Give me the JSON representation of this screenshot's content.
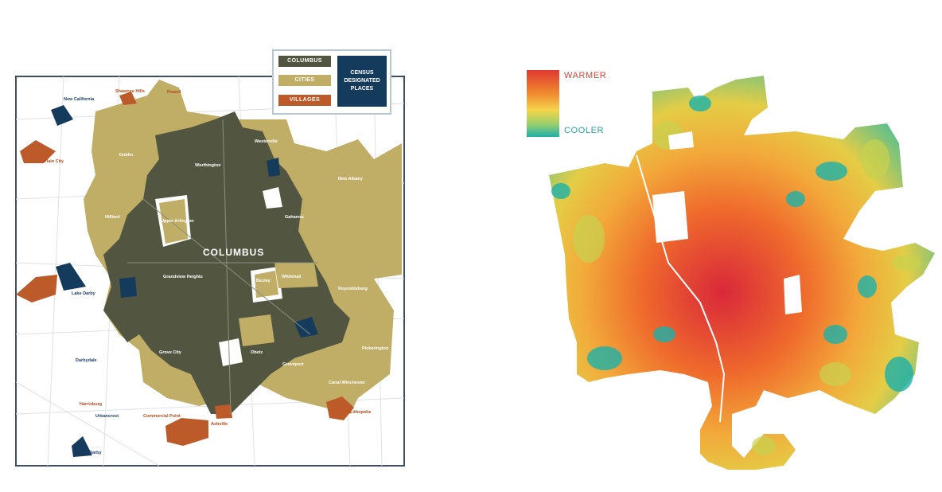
{
  "left_map": {
    "legend": {
      "columbus": "COLUMBUS",
      "cities": "CITIES",
      "villages": "VILLAGES",
      "cdp": "CENSUS DESIGNATED PLACES"
    },
    "city_label": "COLUMBUS",
    "places_white": [
      "Worthington",
      "Dublin",
      "Hilliard",
      "Upper Arlington",
      "Westerville",
      "Gahanna",
      "Bexley",
      "Whitehall",
      "Reynoldsburg",
      "Grove City",
      "Obetz",
      "Groveport",
      "Canal Winchester",
      "New Albany",
      "Pickerington",
      "Grandview Heights"
    ],
    "places_dark": [
      "New California",
      "Lake Darby",
      "Darbydale",
      "Urbancrest",
      "Darby"
    ],
    "places_orange": [
      "Plain City",
      "Harrisburg",
      "Commercial Point",
      "Ashville",
      "Lithopolis",
      "Shawnee Hills",
      "Powell"
    ],
    "colors": {
      "columbus": "#525640",
      "cities": "#c0ad66",
      "villages": "#bd5a2a",
      "cdp": "#143a5c"
    }
  },
  "right_map": {
    "legend_warm": "WARMER",
    "legend_cool": "COOLER",
    "colors": {
      "warm": "#e03a30",
      "mid": "#f4d44b",
      "cool": "#1cb1a9"
    }
  }
}
